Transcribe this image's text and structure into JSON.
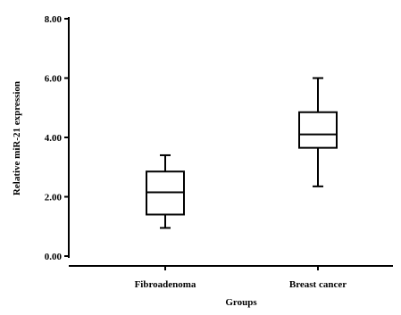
{
  "chart_data": {
    "type": "box",
    "xlabel": "Groups",
    "ylabel": "Relative miR-21 expression",
    "ylim": [
      0,
      8
    ],
    "yticks": [
      {
        "value": 0,
        "label": "0.00"
      },
      {
        "value": 2,
        "label": "2.00"
      },
      {
        "value": 4,
        "label": "4.00"
      },
      {
        "value": 6,
        "label": "6.00"
      },
      {
        "value": 8,
        "label": "8.00"
      }
    ],
    "categories": [
      "Fibroadenoma",
      "Breast cancer"
    ],
    "boxes": [
      {
        "category": "Fibroadenoma",
        "min": 0.95,
        "q1": 1.4,
        "median": 2.15,
        "q3": 2.85,
        "max": 3.4
      },
      {
        "category": "Breast cancer",
        "min": 2.35,
        "q1": 3.65,
        "median": 4.1,
        "q3": 4.85,
        "max": 6.0
      }
    ],
    "grid": false,
    "legend": "none"
  }
}
